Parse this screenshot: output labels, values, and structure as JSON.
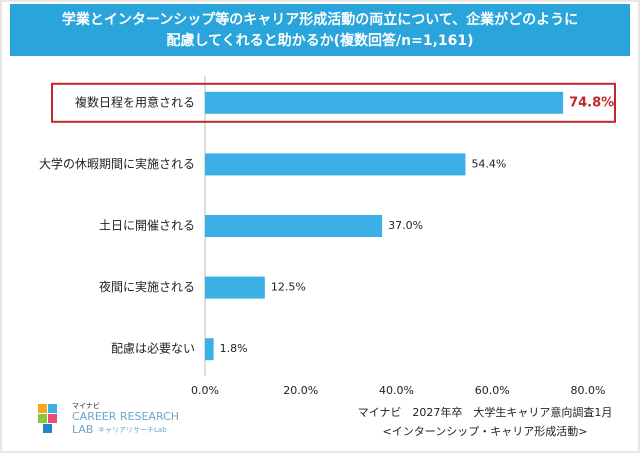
{
  "chart_data": {
    "type": "bar",
    "orientation": "horizontal",
    "title": [
      "学業とインターンシップ等のキャリア形成活動の両立について、企業がどのように",
      "配慮してくれると助かるか(複数回答/n=1,161)"
    ],
    "categories": [
      "複数日程を用意される",
      "大学の休暇期間に実施される",
      "土日に開催される",
      "夜間に実施される",
      "配慮は必要ない"
    ],
    "values": [
      74.8,
      54.4,
      37.0,
      12.5,
      1.8
    ],
    "value_labels": [
      "74.8%",
      "54.4%",
      "37.0%",
      "12.5%",
      "1.8%"
    ],
    "color": "#3bb0e6",
    "highlight_index": 0,
    "highlight_color": "#c0282d",
    "xlim": [
      0,
      80
    ],
    "xticks": [
      {
        "value": 0,
        "label": "0.0%"
      },
      {
        "value": 20,
        "label": "20.0%"
      },
      {
        "value": 40,
        "label": "40.0%"
      },
      {
        "value": 60,
        "label": "60.0%"
      },
      {
        "value": 80,
        "label": "80.0%"
      }
    ],
    "source": [
      "マイナビ　2027年卒　大学生キャリア意向調査1月",
      "<インターンシップ・キャリア形成活動>"
    ],
    "logo": [
      "マイナビ",
      "CAREER RESEARCH",
      "LAB",
      "キャリアリサーチLab"
    ]
  }
}
